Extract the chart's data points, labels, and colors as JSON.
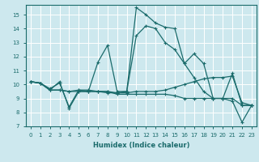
{
  "xlabel": "Humidex (Indice chaleur)",
  "xlim": [
    -0.5,
    23.5
  ],
  "ylim": [
    7,
    15.7
  ],
  "yticks": [
    7,
    8,
    9,
    10,
    11,
    12,
    13,
    14,
    15
  ],
  "xticks": [
    0,
    1,
    2,
    3,
    4,
    5,
    6,
    7,
    8,
    9,
    10,
    11,
    12,
    13,
    14,
    15,
    16,
    17,
    18,
    19,
    20,
    21,
    22,
    23
  ],
  "bg_color": "#cde8ee",
  "line_color": "#1a6b6b",
  "grid_color": "#ffffff",
  "series": [
    [
      10.2,
      10.1,
      9.6,
      10.2,
      8.3,
      9.5,
      9.5,
      11.6,
      12.8,
      9.5,
      9.5,
      15.5,
      15.0,
      14.4,
      14.1,
      14.0,
      11.5,
      12.2,
      11.5,
      9.0,
      9.0,
      10.8,
      8.5,
      8.5
    ],
    [
      10.2,
      10.1,
      9.6,
      9.6,
      9.5,
      9.5,
      9.5,
      9.5,
      9.5,
      9.3,
      9.3,
      9.3,
      9.3,
      9.3,
      9.3,
      9.2,
      9.0,
      9.0,
      9.0,
      9.0,
      9.0,
      9.0,
      8.5,
      8.5
    ],
    [
      10.2,
      10.1,
      9.6,
      9.6,
      9.5,
      9.6,
      9.6,
      9.5,
      9.5,
      9.4,
      9.4,
      9.5,
      9.5,
      9.5,
      9.6,
      9.8,
      10.0,
      10.2,
      10.4,
      10.5,
      10.5,
      10.6,
      8.7,
      8.5
    ],
    [
      10.2,
      10.1,
      9.7,
      10.1,
      8.4,
      9.6,
      9.5,
      9.5,
      9.4,
      9.4,
      9.5,
      13.5,
      14.2,
      14.0,
      13.0,
      12.5,
      11.5,
      10.5,
      9.5,
      9.0,
      9.0,
      8.8,
      7.3,
      8.5
    ]
  ]
}
